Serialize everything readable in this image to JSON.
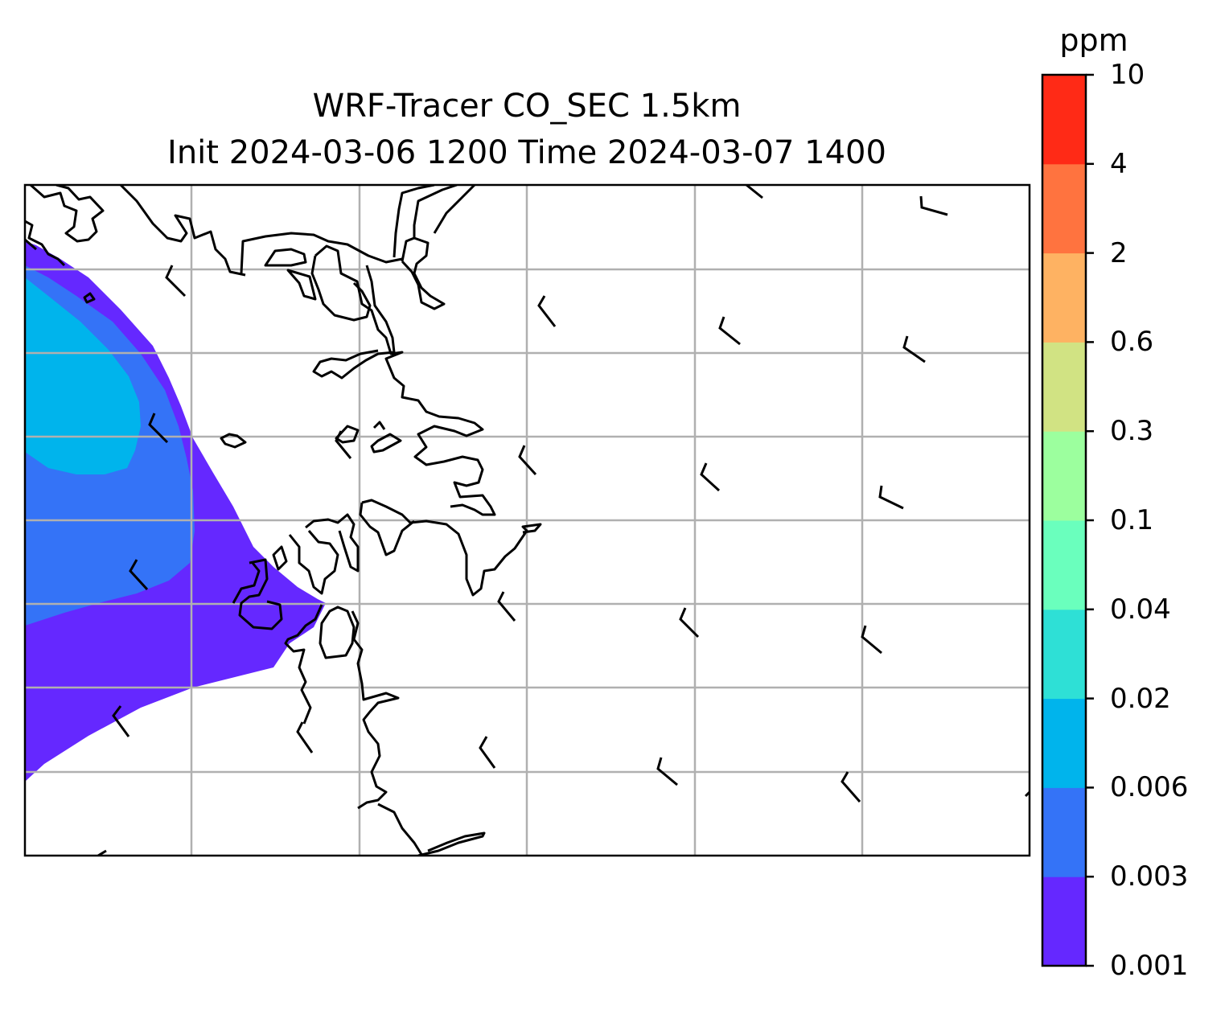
{
  "title": {
    "line1": "WRF-Tracer CO_SEC 1.5km",
    "line2": "Init 2024-03-06 1200 Time 2024-03-07 1400"
  },
  "colorbar": {
    "unit": "ppm",
    "levels": [
      "0.001",
      "0.003",
      "0.006",
      "0.02",
      "0.04",
      "0.1",
      "0.3",
      "0.6",
      "2",
      "4",
      "10"
    ],
    "colors": [
      "#6528ff",
      "#3473f7",
      "#00b4ec",
      "#2ee0d6",
      "#6affbd",
      "#9cff9e",
      "#d1e383",
      "#feb262",
      "#ff733f",
      "#ff2a16"
    ]
  },
  "map": {
    "gridlines": true,
    "grid_color": "#b0b0b0",
    "coastline_color": "#000000",
    "features": [
      "coastline",
      "wind-barbs",
      "tracer-concentration-fill"
    ]
  },
  "chart_data": {
    "type": "heatmap",
    "title": "WRF-Tracer CO_SEC 1.5km / Init 2024-03-06 1200 Time 2024-03-07 1400",
    "legend_placement": "right",
    "colorbar_label": "ppm",
    "contour_levels": [
      0.001,
      0.003,
      0.006,
      0.02,
      0.04,
      0.1,
      0.3,
      0.6,
      2,
      4,
      10
    ],
    "visible_concentration_bands": [
      "0.001-0.003",
      "0.003-0.006",
      "0.006-0.02"
    ],
    "plume_location": "west edge of domain"
  }
}
